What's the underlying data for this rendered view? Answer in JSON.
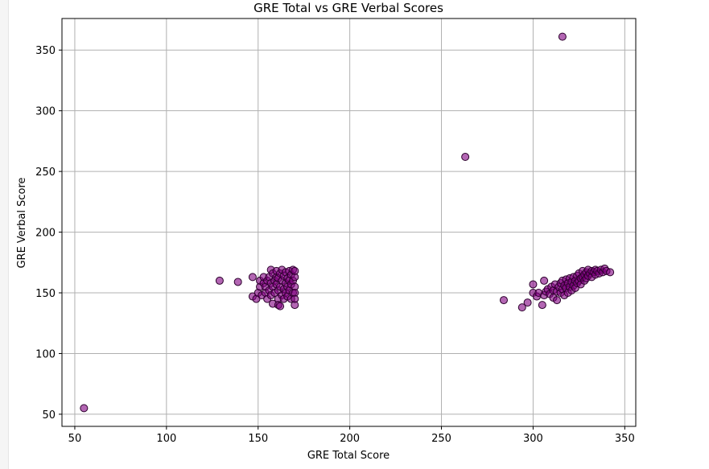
{
  "chart_data": {
    "type": "scatter",
    "title": "GRE Total vs GRE Verbal Scores",
    "xlabel": "GRE Total Score",
    "ylabel": "GRE Verbal Score",
    "xlim": [
      43,
      356
    ],
    "ylim": [
      40,
      376
    ],
    "xticks": [
      50,
      100,
      150,
      200,
      250,
      300,
      350
    ],
    "yticks": [
      50,
      100,
      150,
      200,
      250,
      300,
      350
    ],
    "grid": true,
    "marker_color": "#800080",
    "marker_edge_color": "#2b002b",
    "marker_alpha": 0.6,
    "points": [
      [
        55,
        55
      ],
      [
        129,
        160
      ],
      [
        139,
        159
      ],
      [
        147,
        163
      ],
      [
        147,
        147
      ],
      [
        149,
        145
      ],
      [
        150,
        150
      ],
      [
        151,
        155
      ],
      [
        151,
        160
      ],
      [
        152,
        148
      ],
      [
        153,
        158
      ],
      [
        153,
        163
      ],
      [
        154,
        150
      ],
      [
        154,
        155
      ],
      [
        155,
        160
      ],
      [
        155,
        145
      ],
      [
        156,
        152
      ],
      [
        156,
        163
      ],
      [
        157,
        158
      ],
      [
        157,
        148
      ],
      [
        157,
        169
      ],
      [
        158,
        141
      ],
      [
        158,
        155
      ],
      [
        158,
        166
      ],
      [
        159,
        160
      ],
      [
        159,
        150
      ],
      [
        160,
        157
      ],
      [
        160,
        163
      ],
      [
        160,
        168
      ],
      [
        161,
        145
      ],
      [
        161,
        140
      ],
      [
        161,
        152
      ],
      [
        161,
        162
      ],
      [
        162,
        139
      ],
      [
        162,
        155
      ],
      [
        162,
        166
      ],
      [
        163,
        148
      ],
      [
        163,
        160
      ],
      [
        163,
        169
      ],
      [
        164,
        145
      ],
      [
        164,
        153
      ],
      [
        164,
        164
      ],
      [
        165,
        150
      ],
      [
        165,
        158
      ],
      [
        165,
        167
      ],
      [
        166,
        155
      ],
      [
        166,
        162
      ],
      [
        166,
        147
      ],
      [
        167,
        160
      ],
      [
        167,
        168
      ],
      [
        167,
        152
      ],
      [
        168,
        145
      ],
      [
        168,
        157
      ],
      [
        168,
        165
      ],
      [
        169,
        150
      ],
      [
        169,
        160
      ],
      [
        169,
        169
      ],
      [
        170,
        140
      ],
      [
        170,
        155
      ],
      [
        170,
        163
      ],
      [
        170,
        168
      ],
      [
        170,
        150
      ],
      [
        170,
        145
      ],
      [
        263,
        262
      ],
      [
        284,
        144
      ],
      [
        294,
        138
      ],
      [
        297,
        142
      ],
      [
        300,
        157
      ],
      [
        300,
        150
      ],
      [
        302,
        147
      ],
      [
        303,
        150
      ],
      [
        305,
        140
      ],
      [
        306,
        148
      ],
      [
        306,
        160
      ],
      [
        307,
        151
      ],
      [
        308,
        153
      ],
      [
        309,
        149
      ],
      [
        310,
        155
      ],
      [
        311,
        146
      ],
      [
        311,
        152
      ],
      [
        312,
        157
      ],
      [
        313,
        151
      ],
      [
        313,
        144
      ],
      [
        314,
        155
      ],
      [
        315,
        158
      ],
      [
        315,
        150
      ],
      [
        316,
        160
      ],
      [
        316,
        153
      ],
      [
        317,
        148
      ],
      [
        317,
        156
      ],
      [
        318,
        161
      ],
      [
        318,
        154
      ],
      [
        319,
        158
      ],
      [
        319,
        150
      ],
      [
        320,
        162
      ],
      [
        320,
        155
      ],
      [
        321,
        159
      ],
      [
        321,
        152
      ],
      [
        322,
        163
      ],
      [
        322,
        156
      ],
      [
        323,
        160
      ],
      [
        323,
        154
      ],
      [
        324,
        164
      ],
      [
        324,
        158
      ],
      [
        325,
        166
      ],
      [
        325,
        160
      ],
      [
        326,
        162
      ],
      [
        326,
        157
      ],
      [
        327,
        168
      ],
      [
        327,
        163
      ],
      [
        328,
        165
      ],
      [
        328,
        160
      ],
      [
        329,
        167
      ],
      [
        329,
        162
      ],
      [
        330,
        169
      ],
      [
        330,
        164
      ],
      [
        331,
        166
      ],
      [
        332,
        168
      ],
      [
        332,
        163
      ],
      [
        333,
        167
      ],
      [
        334,
        169
      ],
      [
        334,
        165
      ],
      [
        335,
        168
      ],
      [
        336,
        166
      ],
      [
        337,
        169
      ],
      [
        338,
        167
      ],
      [
        339,
        170
      ],
      [
        340,
        168
      ],
      [
        342,
        167
      ],
      [
        316,
        361
      ]
    ]
  }
}
